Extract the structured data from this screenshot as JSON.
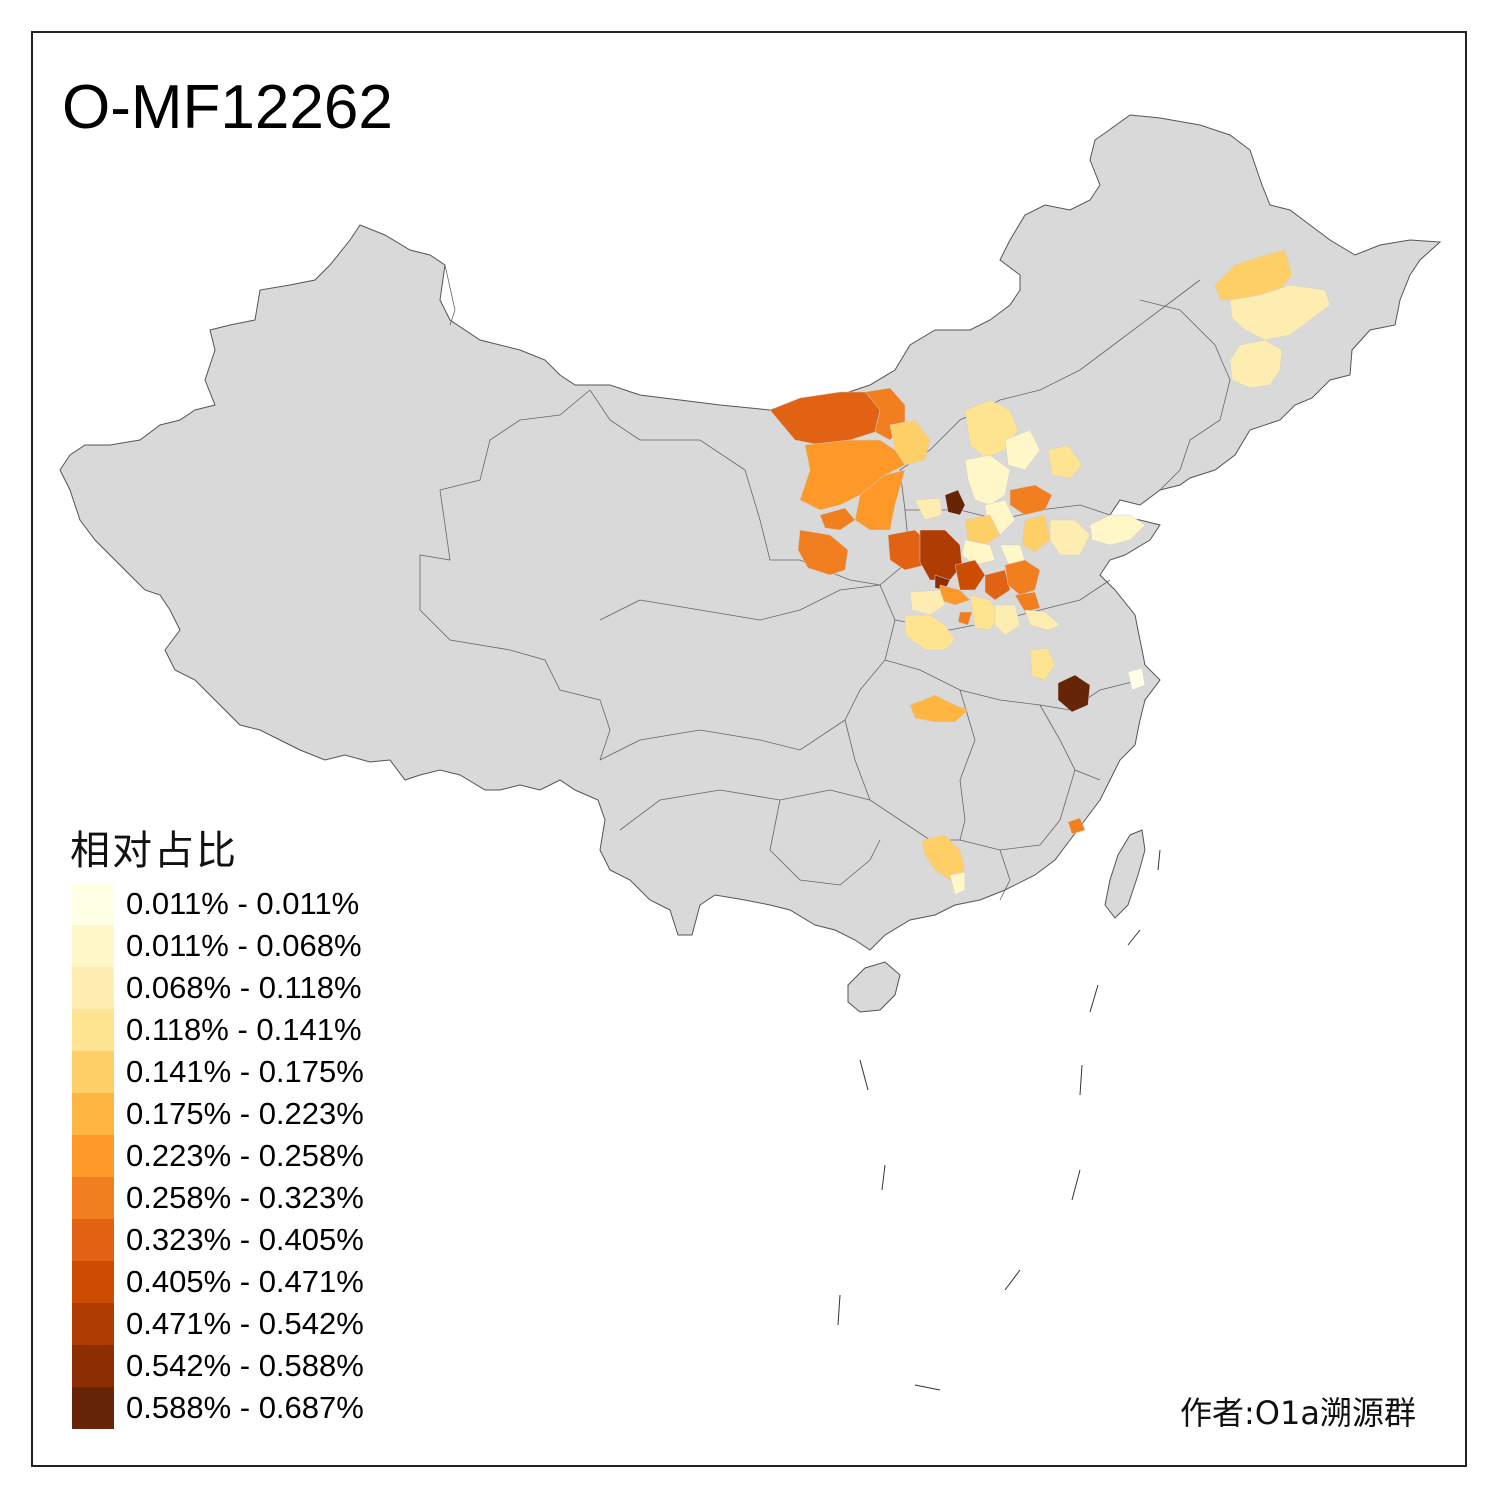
{
  "title": "O-MF12262",
  "legend": {
    "title": "相对占比",
    "items": [
      {
        "label": "0.011% - 0.011%",
        "color": "#FFFFE5"
      },
      {
        "label": "0.011% - 0.068%",
        "color": "#FFF7C8"
      },
      {
        "label": "0.068% - 0.118%",
        "color": "#FEEDB0"
      },
      {
        "label": "0.118% - 0.141%",
        "color": "#FEE391"
      },
      {
        "label": "0.141% - 0.175%",
        "color": "#FECF66"
      },
      {
        "label": "0.175% - 0.223%",
        "color": "#FEB541"
      },
      {
        "label": "0.223% - 0.258%",
        "color": "#FE9929"
      },
      {
        "label": "0.258% - 0.323%",
        "color": "#F17F1F"
      },
      {
        "label": "0.323% - 0.405%",
        "color": "#E16213"
      },
      {
        "label": "0.405% - 0.471%",
        "color": "#CC4C02"
      },
      {
        "label": "0.471% - 0.542%",
        "color": "#AE3C03"
      },
      {
        "label": "0.542% - 0.588%",
        "color": "#8C2D04"
      },
      {
        "label": "0.588% - 0.687%",
        "color": "#662506"
      }
    ]
  },
  "credit": "作者:O1a溯源群",
  "colors": {
    "land": "#D9D9D9",
    "border": "#555555"
  }
}
